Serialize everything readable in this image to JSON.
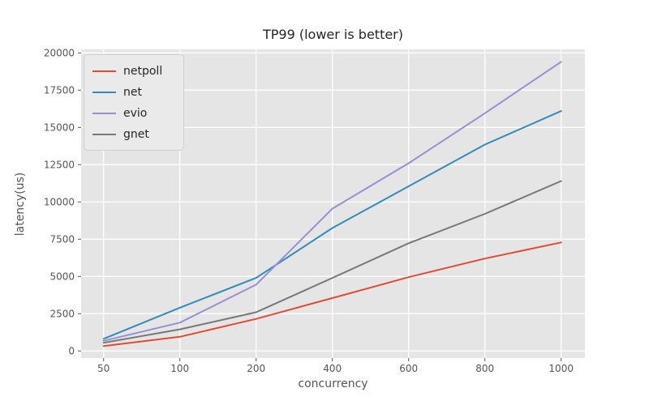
{
  "figure": {
    "background": "#ffffff",
    "plot_background": "#e5e5e5",
    "grid_color": "#ffffff",
    "tick_color": "#555555",
    "title_color": "#262626"
  },
  "chart_data": {
    "type": "line",
    "title": "TP99 (lower is better)",
    "xlabel": "concurrency",
    "ylabel": "latency(us)",
    "categories": [
      50,
      100,
      200,
      400,
      600,
      800,
      1000
    ],
    "x_tick_labels": [
      "50",
      "100",
      "200",
      "400",
      "600",
      "800",
      "1000"
    ],
    "y_ticks": [
      0,
      2500,
      5000,
      7500,
      10000,
      12500,
      15000,
      17500,
      20000
    ],
    "y_tick_labels": [
      "0",
      "2500",
      "5000",
      "7500",
      "10000",
      "12500",
      "15000",
      "17500",
      "20000"
    ],
    "ylim": [
      0,
      20000
    ],
    "grid": true,
    "legend_position": "upper-left",
    "series": [
      {
        "name": "netpoll",
        "color": "#E24A33",
        "values": [
          330,
          950,
          2150,
          3550,
          4950,
          6200,
          7280
        ]
      },
      {
        "name": "net",
        "color": "#348ABD",
        "values": [
          815,
          2900,
          4900,
          8250,
          11050,
          13850,
          16100
        ]
      },
      {
        "name": "evio",
        "color": "#988ED5",
        "values": [
          680,
          1900,
          4450,
          9550,
          12600,
          15950,
          19400
        ]
      },
      {
        "name": "gnet",
        "color": "#777777",
        "values": [
          550,
          1450,
          2600,
          4900,
          7230,
          9200,
          11400
        ]
      }
    ]
  }
}
